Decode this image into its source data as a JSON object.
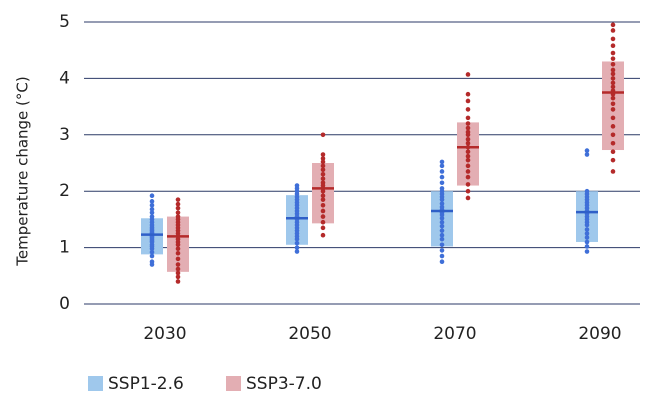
{
  "chart_data": {
    "type": "box-strip",
    "ylabel": "Temperature change (°C)",
    "ylim": [
      0,
      5
    ],
    "yticks": [
      0,
      1,
      2,
      3,
      4,
      5
    ],
    "categories": [
      "2030",
      "2050",
      "2070",
      "2090"
    ],
    "grid": true,
    "legend_position": "bottom-left",
    "series": [
      {
        "name": "SSP1-2.6",
        "box_color": "#9fc8ec",
        "point_color": "#3f6fd8",
        "median_color": "#2f5fc8",
        "ranges": [
          {
            "low": 0.88,
            "median": 1.23,
            "high": 1.52
          },
          {
            "low": 1.05,
            "median": 1.52,
            "high": 1.93
          },
          {
            "low": 1.02,
            "median": 1.65,
            "high": 2.0
          },
          {
            "low": 1.1,
            "median": 1.63,
            "high": 2.0
          }
        ],
        "points": [
          [
            0.7,
            0.75,
            0.85,
            0.92,
            0.98,
            1.02,
            1.05,
            1.1,
            1.12,
            1.15,
            1.18,
            1.2,
            1.22,
            1.25,
            1.27,
            1.3,
            1.33,
            1.36,
            1.4,
            1.45,
            1.5,
            1.55,
            1.62,
            1.68,
            1.75,
            1.82,
            1.92
          ],
          [
            0.93,
            1.0,
            1.08,
            1.15,
            1.2,
            1.25,
            1.3,
            1.35,
            1.4,
            1.45,
            1.5,
            1.55,
            1.6,
            1.65,
            1.7,
            1.75,
            1.8,
            1.85,
            1.9,
            1.95,
            2.0,
            2.05,
            2.1
          ],
          [
            0.75,
            0.85,
            0.95,
            1.05,
            1.15,
            1.22,
            1.3,
            1.38,
            1.45,
            1.52,
            1.58,
            1.62,
            1.67,
            1.72,
            1.78,
            1.85,
            1.9,
            1.95,
            2.0,
            2.05,
            2.15,
            2.25,
            2.35,
            2.45,
            2.52
          ],
          [
            0.93,
            1.02,
            1.1,
            1.18,
            1.25,
            1.32,
            1.4,
            1.45,
            1.5,
            1.55,
            1.6,
            1.65,
            1.7,
            1.75,
            1.8,
            1.85,
            1.9,
            1.95,
            2.0,
            2.65,
            2.72
          ]
        ]
      },
      {
        "name": "SSP3-7.0",
        "box_color": "#e3aeb3",
        "point_color": "#b42a2a",
        "median_color": "#b42a2a",
        "ranges": [
          {
            "low": 0.57,
            "median": 1.2,
            "high": 1.55
          },
          {
            "low": 1.43,
            "median": 2.05,
            "high": 2.5
          },
          {
            "low": 2.1,
            "median": 2.78,
            "high": 3.22
          },
          {
            "low": 2.73,
            "median": 3.75,
            "high": 4.3
          }
        ],
        "points": [
          [
            0.4,
            0.48,
            0.55,
            0.62,
            0.7,
            0.8,
            0.9,
            0.98,
            1.05,
            1.1,
            1.15,
            1.2,
            1.25,
            1.3,
            1.35,
            1.4,
            1.45,
            1.5,
            1.55,
            1.62,
            1.7,
            1.77,
            1.85
          ],
          [
            1.22,
            1.35,
            1.45,
            1.55,
            1.65,
            1.75,
            1.85,
            1.92,
            2.0,
            2.05,
            2.1,
            2.15,
            2.22,
            2.3,
            2.38,
            2.45,
            2.52,
            2.58,
            2.65,
            3.0
          ],
          [
            1.88,
            2.0,
            2.12,
            2.25,
            2.35,
            2.45,
            2.55,
            2.62,
            2.7,
            2.78,
            2.85,
            2.92,
            3.0,
            3.05,
            3.12,
            3.2,
            3.3,
            3.45,
            3.6,
            3.72,
            4.07
          ],
          [
            2.35,
            2.55,
            2.7,
            2.85,
            3.0,
            3.15,
            3.3,
            3.45,
            3.55,
            3.65,
            3.72,
            3.78,
            3.85,
            3.92,
            4.0,
            4.08,
            4.15,
            4.25,
            4.35,
            4.45,
            4.58,
            4.7,
            4.85,
            4.95
          ]
        ]
      }
    ]
  }
}
